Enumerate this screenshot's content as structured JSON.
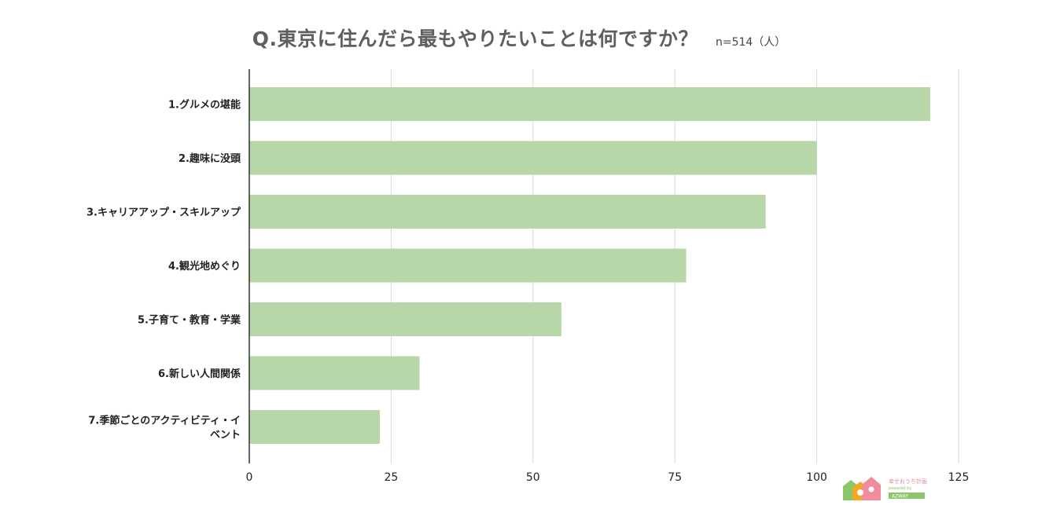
{
  "chart_data": {
    "type": "bar",
    "orientation": "horizontal",
    "title": "Q.東京に住んだら最もやりたいことは何ですか？",
    "note": "n=514（人）",
    "categories": [
      "1.グルメの堪能",
      "2.趣味に没頭",
      "3.キャリアアップ・スキルアップ",
      "4.観光地めぐり",
      "5.子育て・教育・学業",
      "6.新しい人間関係",
      "7.季節ごとのアクティビティ・イベント"
    ],
    "category_lines": [
      [
        "1.グルメの堪能"
      ],
      [
        "2.趣味に没頭"
      ],
      [
        "3.キャリアアップ・スキルアップ"
      ],
      [
        "4.観光地めぐり"
      ],
      [
        "5.子育て・教育・学業"
      ],
      [
        "6.新しい人間関係"
      ],
      [
        "7.季節ごとのアクティビティ・イ",
        "ベント"
      ]
    ],
    "values": [
      120,
      100,
      91,
      77,
      55,
      30,
      23
    ],
    "xlim": [
      0,
      125
    ],
    "xticks": [
      0,
      25,
      50,
      75,
      100,
      125
    ],
    "grid": true,
    "bar_color": "#b7d7a8",
    "grid_color": "#d9d9d9",
    "axis_color": "#333333"
  },
  "logo": {
    "text_line1": "幸せおうち計画",
    "text_line2": "powered by",
    "text_line3": "AZWAY"
  }
}
